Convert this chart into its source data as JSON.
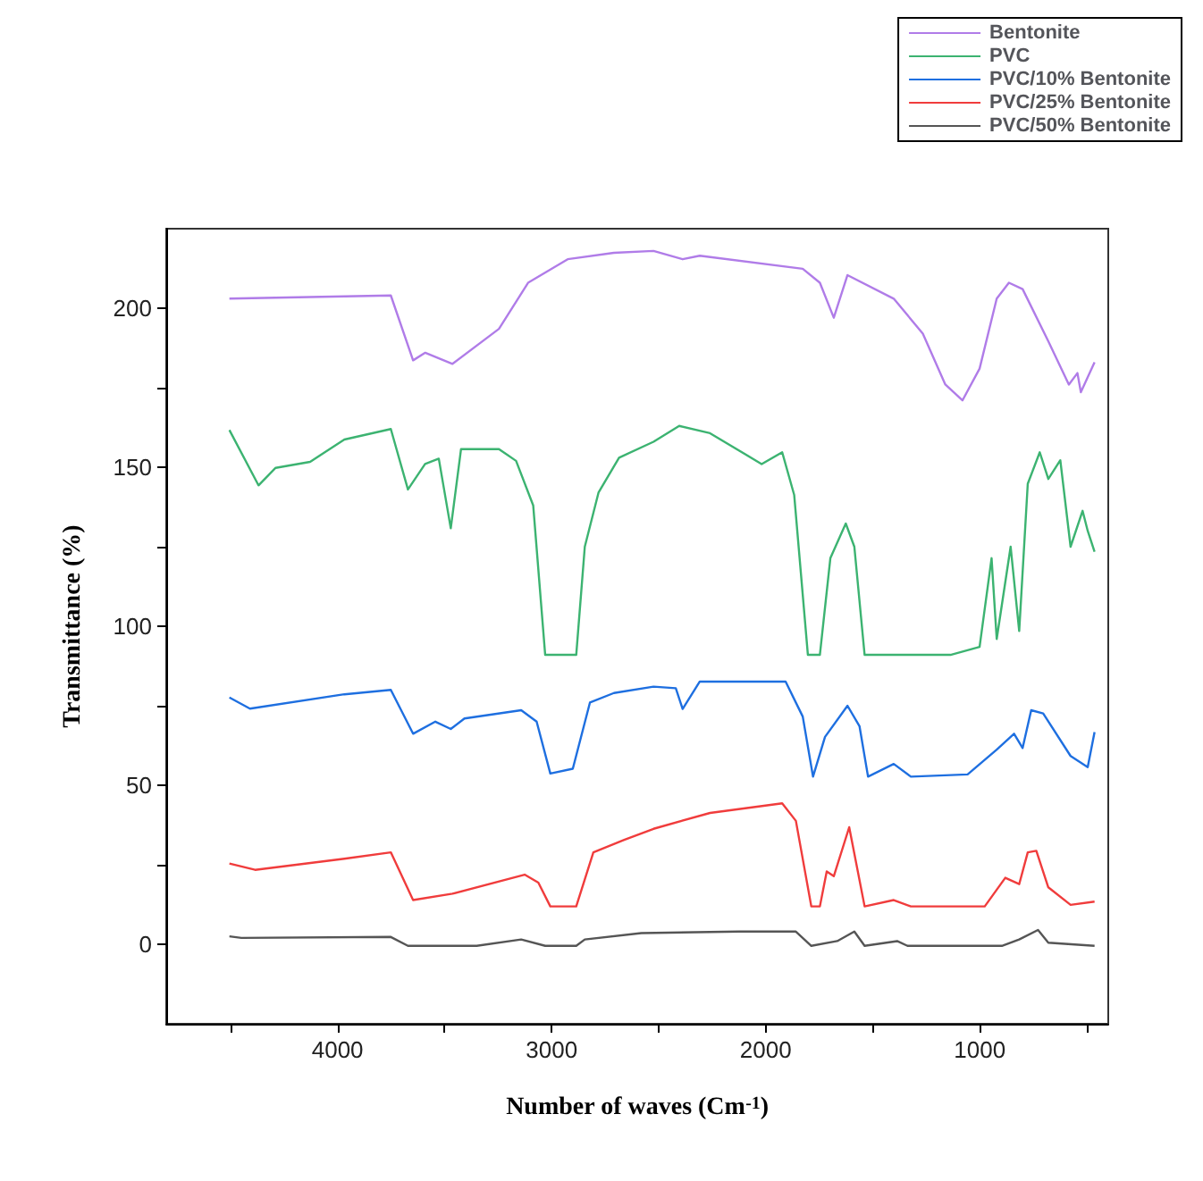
{
  "chart_data": {
    "type": "line",
    "xlabel": "Number of waves (Cm$^{-1}$)",
    "ylabel": "Transmittance (%)",
    "xlim": [
      4800,
      400
    ],
    "xticks": [
      {
        "value": 4500,
        "label": null
      },
      4000,
      {
        "value": 3500,
        "label": null
      },
      3000,
      {
        "value": 2500,
        "label": null
      },
      2000,
      {
        "value": 1500,
        "label": null
      },
      1000,
      {
        "value": 500,
        "label": null
      }
    ],
    "ylim": [
      -25,
      225
    ],
    "yticks": [
      0,
      {
        "value": 25,
        "label": null
      },
      50,
      {
        "value": 75,
        "label": null
      },
      100,
      {
        "value": 125,
        "label": null
      },
      150,
      {
        "value": 175,
        "label": null
      },
      200
    ],
    "grid": false,
    "legend": "top right",
    "marker": "none",
    "line_style": "solid",
    "series": [
      {
        "name": "Bentonite",
        "color": "#b07ce8",
        "x": [
          4505,
          3751,
          3647,
          3590,
          3463,
          3246,
          3110,
          2925,
          2709,
          2524,
          2388,
          2308,
          1827,
          1747,
          1682,
          1618,
          1402,
          1266,
          1161,
          1081,
          1001,
          921,
          864,
          800,
          680,
          584,
          544,
          528,
          464
        ],
        "values": [
          203,
          204,
          183.6,
          186,
          182.5,
          193.5,
          208,
          215.4,
          217.4,
          218,
          215.4,
          216.5,
          212.4,
          208,
          197,
          210.4,
          203,
          192,
          176,
          171,
          181,
          203,
          208,
          206,
          189.6,
          176,
          179.6,
          173.6,
          183
        ]
      },
      {
        "name": "PVC",
        "color": "#3cb371",
        "x": [
          4505,
          4369,
          4289,
          4128,
          3968,
          3751,
          3671,
          3591,
          3527,
          3471,
          3423,
          3246,
          3166,
          3086,
          3030,
          2885,
          2845,
          2781,
          2685,
          2524,
          2404,
          2260,
          2019,
          1923,
          1867,
          1803,
          1747,
          1698,
          1626,
          1586,
          1538,
          1137,
          1001,
          945,
          921,
          856,
          816,
          776,
          720,
          680,
          624,
          576,
          520,
          496,
          464
        ],
        "values": [
          161.7,
          144.3,
          149.8,
          151.7,
          158.7,
          162,
          143,
          151,
          152.7,
          130.8,
          155.7,
          155.7,
          152,
          138,
          91,
          91,
          125,
          142,
          153,
          158,
          163,
          160.7,
          151,
          154.7,
          141.3,
          91,
          91,
          121.4,
          132.3,
          125,
          91,
          91,
          93.5,
          121.4,
          96,
          125,
          98.5,
          144.8,
          154.7,
          146.3,
          152.2,
          125,
          136.3,
          130,
          123.4
        ]
      },
      {
        "name": "PVC/10% Bentonite",
        "color": "#1e6fe0",
        "x": [
          4505,
          4409,
          3968,
          3751,
          3647,
          3543,
          3471,
          3407,
          3142,
          3070,
          3006,
          2901,
          2821,
          2709,
          2524,
          2420,
          2388,
          2308,
          1907,
          1827,
          1779,
          1723,
          1618,
          1562,
          1522,
          1402,
          1322,
          1057,
          921,
          840,
          800,
          760,
          704,
          576,
          496,
          464
        ],
        "values": [
          77.6,
          74.1,
          78.6,
          80,
          66.2,
          70,
          67.7,
          71,
          73.6,
          70,
          53.7,
          55.2,
          76,
          79,
          81,
          80.5,
          74,
          82.6,
          82.6,
          71.6,
          52.7,
          65.2,
          75,
          68.6,
          52.7,
          56.7,
          52.7,
          53.4,
          61.2,
          66.2,
          61.7,
          73.6,
          72.6,
          59.2,
          55.7,
          66.7
        ]
      },
      {
        "name": "PVC/25% Bentonite",
        "color": "#f03c3c",
        "x": [
          4505,
          4385,
          3968,
          3751,
          3647,
          3463,
          3126,
          3062,
          3006,
          2885,
          2805,
          2661,
          2524,
          2260,
          1923,
          1859,
          1787,
          1747,
          1715,
          1682,
          1610,
          1538,
          1402,
          1322,
          977,
          881,
          816,
          776,
          736,
          680,
          576,
          464
        ],
        "values": [
          25.4,
          23.4,
          26.9,
          28.9,
          13.9,
          15.9,
          21.9,
          19.4,
          11.9,
          11.9,
          28.9,
          32.8,
          36.3,
          41.3,
          44.3,
          38.8,
          11.9,
          11.9,
          22.9,
          21.4,
          36.8,
          11.9,
          13.9,
          11.9,
          11.9,
          20.9,
          18.9,
          28.9,
          29.4,
          17.9,
          12.4,
          13.4
        ]
      },
      {
        "name": "PVC/50% Bentonite",
        "color": "#555555",
        "x": [
          4505,
          4449,
          3751,
          3671,
          3350,
          3142,
          3030,
          2885,
          2845,
          2581,
          2124,
          1859,
          1787,
          1666,
          1586,
          1538,
          1386,
          1338,
          897,
          816,
          728,
          680,
          464
        ],
        "values": [
          2.5,
          2,
          2.3,
          -0.5,
          -0.5,
          1.5,
          -0.5,
          -0.5,
          1.5,
          3.5,
          4,
          4,
          -0.5,
          1,
          4,
          -0.5,
          1,
          -0.5,
          -0.5,
          1.5,
          4.5,
          0.5,
          -0.5
        ]
      }
    ]
  }
}
